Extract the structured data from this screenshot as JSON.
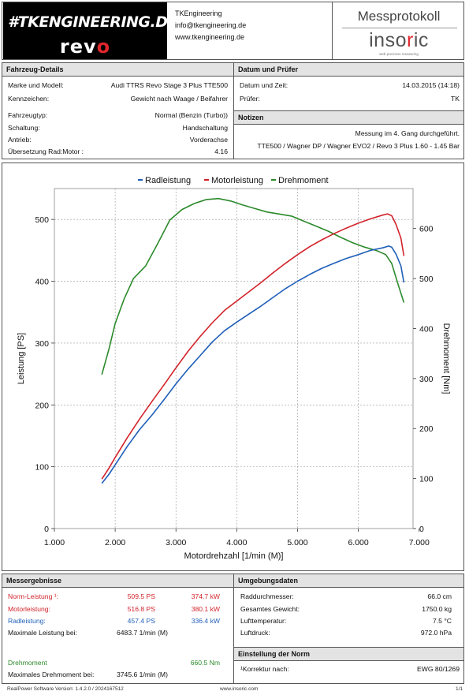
{
  "header": {
    "logo_line1": "#TKENGINEERING.DE",
    "logo_revo_a": "rev",
    "logo_revo_b": "o",
    "company_name": "TKEngineering",
    "company_email": "info@tkengineering.de",
    "company_web": "www.tkengineering.de",
    "protocol_title": "Messprotokoll",
    "brand_a": "inso",
    "brand_b": "r",
    "brand_c": "ic",
    "brand_sub": "web precision measuring"
  },
  "vehicle": {
    "title": "Fahrzeug-Details",
    "rows": [
      {
        "label": "Marke und Modell:",
        "value": "Audi TTRS Revo Stage 3 Plus TTE500"
      },
      {
        "label": "Kennzeichen:",
        "value": "Gewicht nach Waage / Beifahrer"
      },
      {
        "label": "Fahrzeugtyp:",
        "value": "Normal (Benzin (Turbo))"
      },
      {
        "label": "Schaltung:",
        "value": "Handschaltung"
      },
      {
        "label": "Antrieb:",
        "value": "Vorderachse"
      },
      {
        "label": "Übersetzung Rad:Motor :",
        "value": "4.16"
      }
    ]
  },
  "date": {
    "title": "Datum und Prüfer",
    "rows": [
      {
        "label": "Datum und Zeit:",
        "value": "14.03.2015 (14:18)"
      },
      {
        "label": "Prüfer:",
        "value": "TK"
      }
    ]
  },
  "notes": {
    "title": "Notizen",
    "line1": "Messung im 4. Gang durchgeführt.",
    "line2": "TTE500 / Wagner DP / Wagner EVO2 / Revo 3 Plus  1.60 - 1.45 Bar"
  },
  "chart_data": {
    "type": "line",
    "xlabel": "Motordrehzahl [1/min (M)]",
    "ylabel": "Leistung [PS]",
    "y2label": "Drehmoment [Nm]",
    "xlim": [
      1000,
      6900
    ],
    "ylim": [
      0,
      550
    ],
    "y2lim": [
      0,
      680
    ],
    "x_ticks": [
      "1.000",
      "2.000",
      "3.000",
      "4.000",
      "5.000",
      "6.000",
      "7.000"
    ],
    "y_ticks": [
      "0",
      "100",
      "200",
      "300",
      "400",
      "500"
    ],
    "y2_ticks": [
      "0",
      "100",
      "200",
      "300",
      "400",
      "500",
      "600"
    ],
    "colors": {
      "rad": "#1f5fb8",
      "motor": "#d2232a",
      "torque": "#2b8a2b"
    },
    "series": [
      {
        "name": "Radleistung",
        "axis": "left",
        "x": [
          1780,
          1900,
          2000,
          2200,
          2400,
          2600,
          2800,
          3000,
          3200,
          3400,
          3600,
          3800,
          4000,
          4200,
          4400,
          4600,
          4800,
          5000,
          5200,
          5400,
          5600,
          5800,
          6000,
          6200,
          6400,
          6500,
          6550,
          6620,
          6700,
          6750
        ],
        "y": [
          73,
          88,
          103,
          133,
          160,
          183,
          208,
          234,
          258,
          280,
          302,
          320,
          334,
          347,
          360,
          374,
          388,
          400,
          411,
          421,
          429,
          437,
          443,
          450,
          454,
          457,
          455,
          444,
          425,
          398
        ]
      },
      {
        "name": "Motorleistung",
        "axis": "left",
        "x": [
          1780,
          1900,
          2000,
          2200,
          2400,
          2600,
          2800,
          3000,
          3200,
          3400,
          3600,
          3800,
          4000,
          4200,
          4400,
          4600,
          4800,
          5000,
          5200,
          5400,
          5600,
          5800,
          6000,
          6200,
          6400,
          6480,
          6550,
          6620,
          6700,
          6750
        ],
        "y": [
          80,
          98,
          115,
          147,
          177,
          205,
          232,
          260,
          287,
          311,
          333,
          353,
          368,
          383,
          398,
          414,
          429,
          443,
          456,
          467,
          477,
          486,
          494,
          501,
          507,
          509,
          506,
          492,
          470,
          441
        ]
      },
      {
        "name": "Drehmoment",
        "axis": "right",
        "x": [
          1780,
          1900,
          2000,
          2150,
          2300,
          2500,
          2700,
          2900,
          3100,
          3300,
          3500,
          3700,
          3900,
          4100,
          4300,
          4500,
          4700,
          4900,
          5100,
          5300,
          5500,
          5700,
          5900,
          6100,
          6300,
          6450,
          6550,
          6650,
          6750
        ],
        "y": [
          308,
          360,
          410,
          460,
          500,
          525,
          570,
          617,
          638,
          650,
          658,
          660,
          655,
          647,
          640,
          633,
          629,
          625,
          615,
          605,
          595,
          583,
          572,
          563,
          556,
          548,
          530,
          490,
          452
        ]
      }
    ]
  },
  "results": {
    "title": "Messergebnisse",
    "norm_label": "Norm-Leistung ¹:",
    "norm_ps": "509.5 PS",
    "norm_kw": "374.7 kW",
    "motor_label": "Motorleistung:",
    "motor_ps": "516.8 PS",
    "motor_kw": "380.1 kW",
    "rad_label": "Radleistung:",
    "rad_ps": "457.4 PS",
    "rad_kw": "336.4 kW",
    "maxp_label": "Maximale Leistung bei:",
    "maxp_val": "6483.7 1/min (M)",
    "torque_label": "Drehmoment",
    "torque_val": "660.5 Nm",
    "maxt_label": "Maximales Drehmoment bei:",
    "maxt_val": "3745.6 1/min (M)"
  },
  "environment": {
    "title": "Umgebungsdaten",
    "rows": [
      {
        "label": "Raddurchmesser:",
        "value": "66.0 cm"
      },
      {
        "label": "Gesamtes Gewicht:",
        "value": "1750.0 kg"
      },
      {
        "label": "Lufttemperatur:",
        "value": "7.5 °C"
      },
      {
        "label": "Luftdruck:",
        "value": "972.0 hPa"
      }
    ]
  },
  "norm": {
    "title": "Einstellung der Norm",
    "label": "¹Korrektur nach:",
    "value": "EWG 80/1269"
  },
  "footer": {
    "left": "RealPower Software Version: 1.4.2.0 / 2024167512",
    "center": "www.insoric.com",
    "right": "1/1"
  }
}
